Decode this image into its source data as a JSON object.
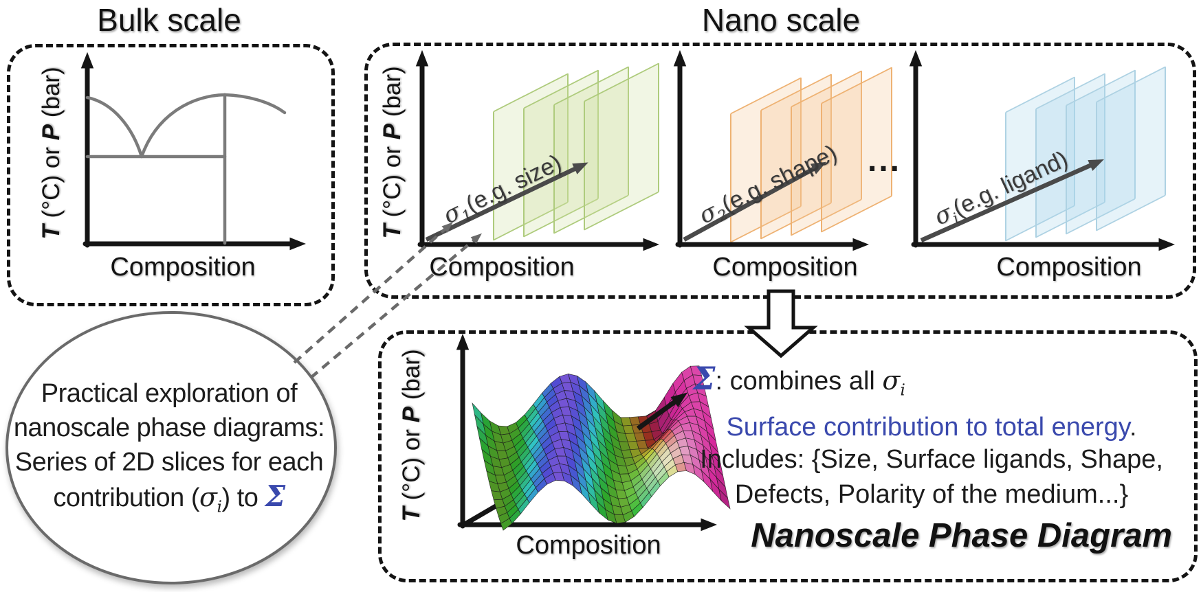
{
  "colors": {
    "accent_blue": "#3a49ad",
    "curve_gray": "#7b7b7b",
    "axis_black": "#151515",
    "sigma_arrow_gray": "#4a4a4a",
    "connector_gray": "#6a6a6a",
    "green_border": "#aecb7c",
    "green_fill": "rgba(203,224,157,0.28)",
    "orange_border": "#eeb273",
    "orange_fill": "rgba(246,198,148,0.28)",
    "blue_border": "#aed2e3",
    "blue_fill": "rgba(173,214,235,0.30)"
  },
  "titles": {
    "bulk": "Bulk scale",
    "nano": "Nano scale"
  },
  "axes": {
    "y_t": "T",
    "y_mid": " (°C) or ",
    "y_p": "P",
    "y_end": " (bar)",
    "x_label": "Composition"
  },
  "nano_plots": [
    {
      "sigma": "σ",
      "sub": "1",
      "rest": "(e.g. size)"
    },
    {
      "sigma": "σ",
      "sub": "2",
      "rest": "(e.g. shape)"
    },
    {
      "sigma": "σ",
      "sub": "i",
      "rest": "(e.g. ligand)"
    }
  ],
  "dots": "...",
  "ellipse": {
    "line1": "Practical exploration of",
    "line2": "nanoscale phase diagrams:",
    "line3": "Series of 2D slices for each",
    "line4_pre": "contribution (",
    "line4_sigma": "σ",
    "line4_sub": "i",
    "line4_mid": ") to ",
    "line4_sum": "Σ"
  },
  "result": {
    "sum_symbol": "Σ",
    "sum_rest": ": combines all ",
    "sum_sigma": "σ",
    "sum_sub": "i",
    "surface_line": "Surface contribution to total energy",
    "surface_period": ".",
    "includes_line1": "Includes: {Size, Surface ligands, Shape,",
    "includes_line2": "Defects, Polarity of the medium...}",
    "title": "Nanoscale Phase Diagram"
  }
}
